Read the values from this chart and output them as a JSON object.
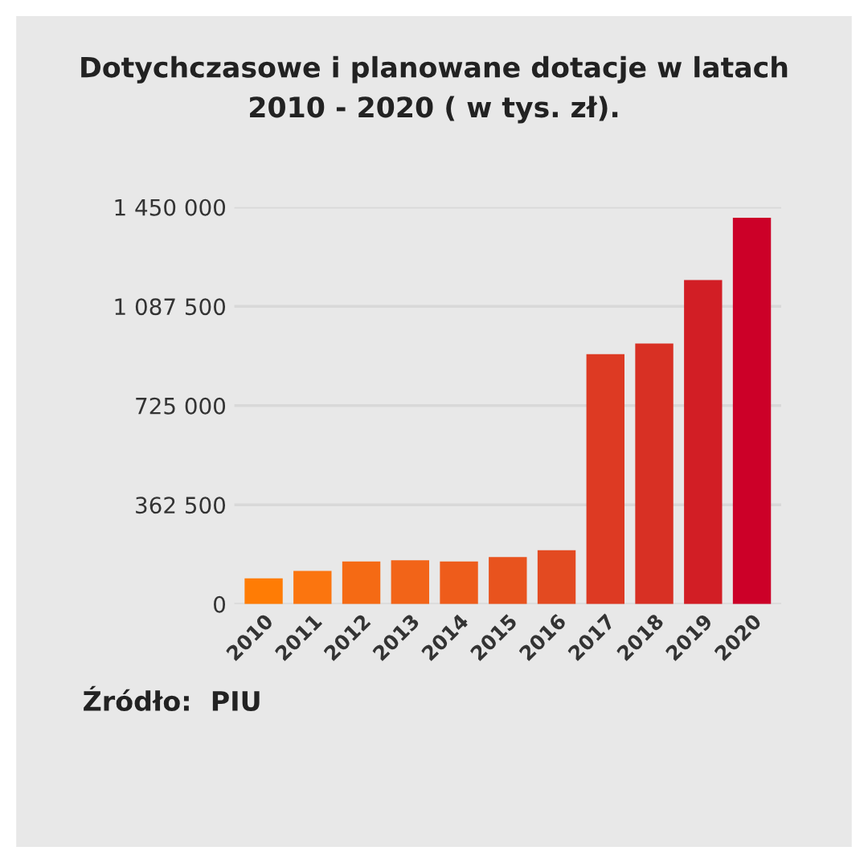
{
  "chart_data": {
    "type": "bar",
    "title": "Dotychczasowe i planowane dotacje w latach\n2010 - 2020 ( w tys. zł).",
    "categories": [
      "2010",
      "2011",
      "2012",
      "2013",
      "2014",
      "2015",
      "2016",
      "2017",
      "2018",
      "2019",
      "2020"
    ],
    "values": [
      94000,
      121000,
      156000,
      160000,
      156000,
      172000,
      197000,
      913000,
      952000,
      1184000,
      1411000
    ],
    "colors": [
      "#ff7c05",
      "#fb750f",
      "#f56a14",
      "#f26418",
      "#ee5c1b",
      "#e8531e",
      "#e34a21",
      "#dd3a23",
      "#d83024",
      "#d21e25",
      "#cc0028"
    ],
    "ylim": [
      0,
      1450000
    ],
    "yticks": [
      0,
      {
        "value": 362500,
        "label": "362 500"
      },
      {
        "value": 725000,
        "label": "725 000"
      },
      {
        "value": 1087500,
        "label": "1 087 500"
      },
      {
        "value": 1450000,
        "label": "1 450 000"
      }
    ],
    "grid": "y",
    "annotations": [
      "Źródło:  PIU"
    ]
  }
}
